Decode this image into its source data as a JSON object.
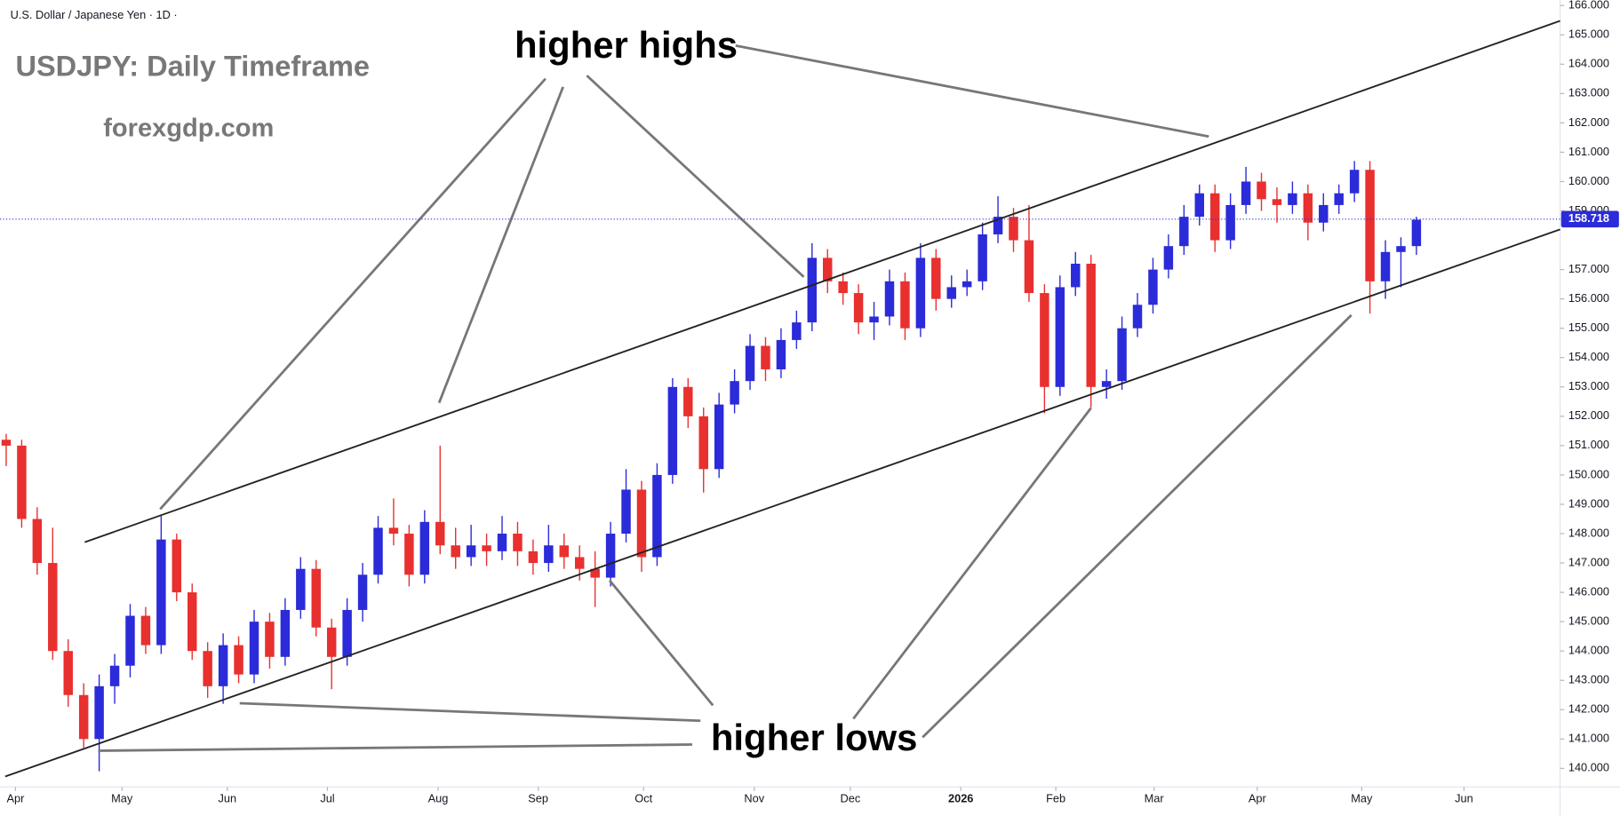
{
  "chart_data": {
    "type": "candlestick",
    "title": "U.S. Dollar / Japanese Yen · 1D ·",
    "annotations": {
      "headline": "USDJPY: Daily Timeframe",
      "site": "forexgdp.com",
      "highs": "higher highs",
      "lows": "higher lows"
    },
    "up_color": "#2b2bd9",
    "down_color": "#e8302f",
    "xlim": [
      -0.4,
      100.27
    ],
    "xticks": [
      {
        "value": 0.6,
        "label": "Apr"
      },
      {
        "value": 7.47,
        "label": "May"
      },
      {
        "value": 14.27,
        "label": "Jun"
      },
      {
        "value": 20.73,
        "label": "Jul"
      },
      {
        "value": 27.87,
        "label": "Aug"
      },
      {
        "value": 34.33,
        "label": "Sep"
      },
      {
        "value": 41.13,
        "label": "Oct"
      },
      {
        "value": 48.27,
        "label": "Nov"
      },
      {
        "value": 54.47,
        "label": "Dec"
      },
      {
        "value": 61.6,
        "label": "2026"
      },
      {
        "value": 67.73,
        "label": "Feb"
      },
      {
        "value": 74.07,
        "label": "Mar"
      },
      {
        "value": 80.73,
        "label": "Apr"
      },
      {
        "value": 87.47,
        "label": "May"
      },
      {
        "value": 94.07,
        "label": "Jun"
      }
    ],
    "ylim": [
      139.37,
      166.18
    ],
    "yticks": [
      {
        "value": 140,
        "label": "140.000"
      },
      {
        "value": 141,
        "label": "141.000"
      },
      {
        "value": 142,
        "label": "142.000"
      },
      {
        "value": 143,
        "label": "143.000"
      },
      {
        "value": 144,
        "label": "144.000"
      },
      {
        "value": 145,
        "label": "145.000"
      },
      {
        "value": 146,
        "label": "146.000"
      },
      {
        "value": 147,
        "label": "147.000"
      },
      {
        "value": 148,
        "label": "148.000"
      },
      {
        "value": 149,
        "label": "149.000"
      },
      {
        "value": 150,
        "label": "150.000"
      },
      {
        "value": 151,
        "label": "151.000"
      },
      {
        "value": 152,
        "label": "152.000"
      },
      {
        "value": 153,
        "label": "153.000"
      },
      {
        "value": 154,
        "label": "154.000"
      },
      {
        "value": 155,
        "label": "155.000"
      },
      {
        "value": 156,
        "label": "156.000"
      },
      {
        "value": 157,
        "label": "157.000"
      },
      {
        "value": 159,
        "label": "159.000"
      },
      {
        "value": 160,
        "label": "160.000"
      },
      {
        "value": 161,
        "label": "161.000"
      },
      {
        "value": 162,
        "label": "162.000"
      },
      {
        "value": 163,
        "label": "163.000"
      },
      {
        "value": 164,
        "label": "164.000"
      },
      {
        "value": 165,
        "label": "165.000"
      },
      {
        "value": 166,
        "label": "166.000"
      }
    ],
    "last_price": {
      "value": 158.718,
      "label": "158.718"
    },
    "candles": [
      [
        151.2,
        151.4,
        150.3,
        151.0
      ],
      [
        151.0,
        151.2,
        148.2,
        148.5
      ],
      [
        148.5,
        148.9,
        146.6,
        147.0
      ],
      [
        147.0,
        148.2,
        143.7,
        144.0
      ],
      [
        144.0,
        144.4,
        142.1,
        142.5
      ],
      [
        142.5,
        142.9,
        140.7,
        141.0
      ],
      [
        141.0,
        143.2,
        139.9,
        142.8
      ],
      [
        142.8,
        143.9,
        142.2,
        143.5
      ],
      [
        143.5,
        145.6,
        143.1,
        145.2
      ],
      [
        145.2,
        145.5,
        143.9,
        144.2
      ],
      [
        144.2,
        148.6,
        143.9,
        147.8
      ],
      [
        147.8,
        148.0,
        145.7,
        146.0
      ],
      [
        146.0,
        146.3,
        143.7,
        144.0
      ],
      [
        144.0,
        144.3,
        142.4,
        142.8
      ],
      [
        142.8,
        144.6,
        142.2,
        144.2
      ],
      [
        144.2,
        144.5,
        142.9,
        143.2
      ],
      [
        143.2,
        145.4,
        142.9,
        145.0
      ],
      [
        145.0,
        145.3,
        143.4,
        143.8
      ],
      [
        143.8,
        145.8,
        143.5,
        145.4
      ],
      [
        145.4,
        147.2,
        145.1,
        146.8
      ],
      [
        146.8,
        147.1,
        144.5,
        144.8
      ],
      [
        144.8,
        145.1,
        142.7,
        143.8
      ],
      [
        143.8,
        145.8,
        143.5,
        145.4
      ],
      [
        145.4,
        147.0,
        145.0,
        146.6
      ],
      [
        146.6,
        148.6,
        146.3,
        148.2
      ],
      [
        148.2,
        149.2,
        147.6,
        148.0
      ],
      [
        148.0,
        148.3,
        146.2,
        146.6
      ],
      [
        146.6,
        148.8,
        146.3,
        148.4
      ],
      [
        148.4,
        151.0,
        147.3,
        147.6
      ],
      [
        147.6,
        148.2,
        146.8,
        147.2
      ],
      [
        147.2,
        148.3,
        146.9,
        147.6
      ],
      [
        147.6,
        148.0,
        146.9,
        147.4
      ],
      [
        147.4,
        148.6,
        147.1,
        148.0
      ],
      [
        148.0,
        148.4,
        146.9,
        147.4
      ],
      [
        147.4,
        147.8,
        146.6,
        147.0
      ],
      [
        147.0,
        148.3,
        146.7,
        147.6
      ],
      [
        147.6,
        148.0,
        146.8,
        147.2
      ],
      [
        147.2,
        147.6,
        146.4,
        146.8
      ],
      [
        146.8,
        147.4,
        145.5,
        146.5
      ],
      [
        146.5,
        148.4,
        146.2,
        148.0
      ],
      [
        148.0,
        150.2,
        147.7,
        149.5
      ],
      [
        149.5,
        149.8,
        146.7,
        147.2
      ],
      [
        147.2,
        150.4,
        146.9,
        150.0
      ],
      [
        150.0,
        153.3,
        149.7,
        153.0
      ],
      [
        153.0,
        153.3,
        151.6,
        152.0
      ],
      [
        152.0,
        152.3,
        149.4,
        150.2
      ],
      [
        150.2,
        152.8,
        149.9,
        152.4
      ],
      [
        152.4,
        153.6,
        152.1,
        153.2
      ],
      [
        153.2,
        154.8,
        152.9,
        154.4
      ],
      [
        154.4,
        154.7,
        153.2,
        153.6
      ],
      [
        153.6,
        155.0,
        153.3,
        154.6
      ],
      [
        154.6,
        155.6,
        154.3,
        155.2
      ],
      [
        155.2,
        157.9,
        154.9,
        157.4
      ],
      [
        157.4,
        157.7,
        156.2,
        156.6
      ],
      [
        156.6,
        156.9,
        155.8,
        156.2
      ],
      [
        156.2,
        156.5,
        154.8,
        155.2
      ],
      [
        155.2,
        155.9,
        154.6,
        155.4
      ],
      [
        155.4,
        157.0,
        155.1,
        156.6
      ],
      [
        156.6,
        156.9,
        154.6,
        155.0
      ],
      [
        155.0,
        157.9,
        154.7,
        157.4
      ],
      [
        157.4,
        157.7,
        155.6,
        156.0
      ],
      [
        156.0,
        156.8,
        155.7,
        156.4
      ],
      [
        156.4,
        157.0,
        156.1,
        156.6
      ],
      [
        156.6,
        158.6,
        156.3,
        158.2
      ],
      [
        158.2,
        159.5,
        157.9,
        158.8
      ],
      [
        158.8,
        159.1,
        157.6,
        158.0
      ],
      [
        158.0,
        159.2,
        155.9,
        156.2
      ],
      [
        156.2,
        156.5,
        152.1,
        153.0
      ],
      [
        153.0,
        156.8,
        152.7,
        156.4
      ],
      [
        156.4,
        157.6,
        156.1,
        157.2
      ],
      [
        157.2,
        157.5,
        152.3,
        153.0
      ],
      [
        153.0,
        153.6,
        152.6,
        153.2
      ],
      [
        153.2,
        155.4,
        152.9,
        155.0
      ],
      [
        155.0,
        156.2,
        154.7,
        155.8
      ],
      [
        155.8,
        157.4,
        155.5,
        157.0
      ],
      [
        157.0,
        158.2,
        156.7,
        157.8
      ],
      [
        157.8,
        159.2,
        157.5,
        158.8
      ],
      [
        158.8,
        159.9,
        158.5,
        159.6
      ],
      [
        159.6,
        159.9,
        157.6,
        158.0
      ],
      [
        158.0,
        159.6,
        157.7,
        159.2
      ],
      [
        159.2,
        160.5,
        158.9,
        160.0
      ],
      [
        160.0,
        160.3,
        159.0,
        159.4
      ],
      [
        159.4,
        159.8,
        158.6,
        159.2
      ],
      [
        159.2,
        160.0,
        158.9,
        159.6
      ],
      [
        159.6,
        159.9,
        158.0,
        158.6
      ],
      [
        158.6,
        159.6,
        158.3,
        159.2
      ],
      [
        159.2,
        159.9,
        158.9,
        159.6
      ],
      [
        159.6,
        160.7,
        159.3,
        160.4
      ],
      [
        160.4,
        160.7,
        155.5,
        156.6
      ],
      [
        156.6,
        158.0,
        156.0,
        157.6
      ],
      [
        157.6,
        158.1,
        156.4,
        157.8
      ],
      [
        157.8,
        158.8,
        157.5,
        158.7
      ]
    ]
  }
}
